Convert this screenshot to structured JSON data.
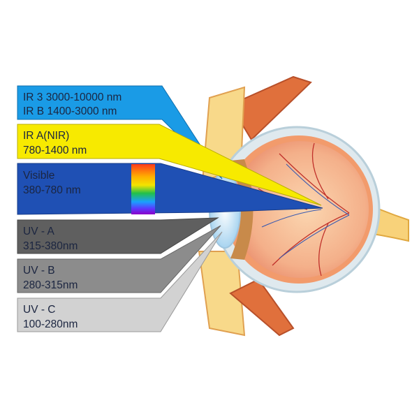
{
  "bands": [
    {
      "line1": "IR 3 3000-10000 nm",
      "line2": "IR B 1400-3000 nm",
      "color": "#1a9be6"
    },
    {
      "line1": "IR A(NIR)",
      "line2": "780-1400 nm",
      "color": "#f7ea00"
    },
    {
      "line1": "Visible",
      "line2": "380-780 nm",
      "color": "#1f50b4"
    },
    {
      "line1": "UV - A",
      "line2": "315-380nm",
      "color": "#5f5f5f"
    },
    {
      "line1": "UV - B",
      "line2": "280-315nm",
      "color": "#8c8c8c"
    },
    {
      "line1": "UV - C",
      "line2": "100-280nm",
      "color": "#d2d2d2"
    }
  ],
  "spectrum_colors": [
    "#ff3b1a",
    "#ffb000",
    "#f2e400",
    "#22c04a",
    "#1aa0ff",
    "#5a3cff",
    "#8a00c8"
  ]
}
